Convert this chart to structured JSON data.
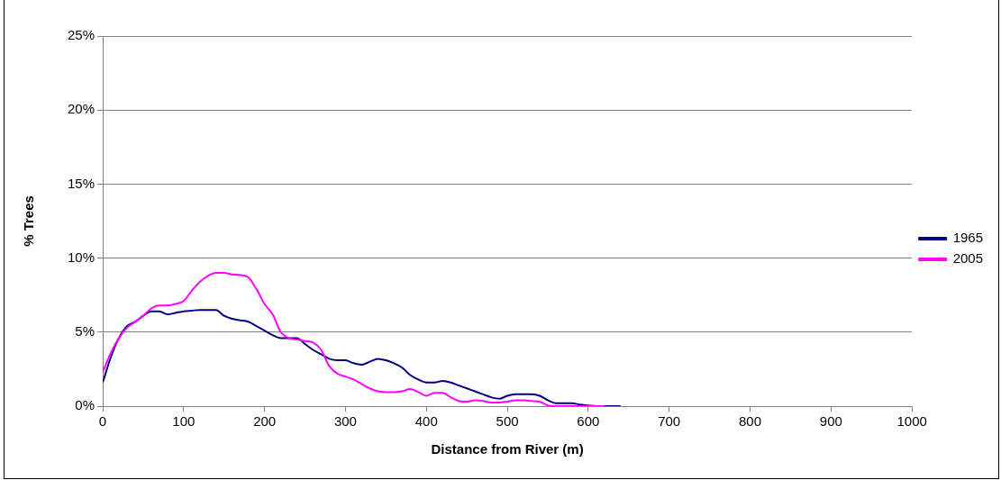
{
  "chart_data": {
    "type": "line",
    "xlabel": "Distance from River (m)",
    "ylabel": "% Trees",
    "x": [
      0,
      10,
      20,
      30,
      40,
      50,
      60,
      70,
      80,
      90,
      100,
      110,
      120,
      130,
      140,
      150,
      160,
      170,
      180,
      190,
      200,
      210,
      220,
      230,
      240,
      250,
      260,
      270,
      280,
      290,
      300,
      310,
      320,
      330,
      340,
      350,
      360,
      370,
      380,
      390,
      400,
      410,
      420,
      430,
      440,
      450,
      460,
      470,
      480,
      490,
      500,
      510,
      520,
      530,
      540,
      550,
      560,
      570,
      580,
      590,
      600,
      610,
      620,
      630,
      640
    ],
    "series": [
      {
        "name": "1965",
        "color": "#000080",
        "values": [
          1.6,
          3.3,
          4.6,
          5.4,
          5.7,
          6.1,
          6.4,
          6.4,
          6.2,
          6.3,
          6.4,
          6.45,
          6.5,
          6.5,
          6.5,
          6.1,
          5.9,
          5.8,
          5.7,
          5.4,
          5.1,
          4.8,
          4.6,
          4.6,
          4.6,
          4.2,
          3.8,
          3.5,
          3.2,
          3.1,
          3.1,
          2.9,
          2.8,
          3.0,
          3.2,
          3.1,
          2.9,
          2.6,
          2.1,
          1.8,
          1.6,
          1.6,
          1.7,
          1.6,
          1.4,
          1.2,
          1.0,
          0.8,
          0.6,
          0.5,
          0.7,
          0.8,
          0.8,
          0.8,
          0.7,
          0.4,
          0.2,
          0.2,
          0.2,
          0.1,
          0.05,
          0,
          0,
          0,
          0
        ]
      },
      {
        "name": "2005",
        "color": "#ff00ff",
        "values": [
          2.3,
          3.6,
          4.6,
          5.3,
          5.7,
          6.1,
          6.6,
          6.8,
          6.8,
          6.9,
          7.1,
          7.8,
          8.4,
          8.8,
          9.0,
          9.0,
          8.9,
          8.85,
          8.7,
          7.9,
          6.9,
          6.2,
          5.0,
          4.6,
          4.5,
          4.4,
          4.3,
          3.8,
          2.7,
          2.2,
          2.0,
          1.8,
          1.5,
          1.2,
          1.0,
          0.95,
          0.95,
          1.0,
          1.15,
          0.95,
          0.7,
          0.9,
          0.9,
          0.6,
          0.35,
          0.3,
          0.4,
          0.35,
          0.25,
          0.25,
          0.3,
          0.4,
          0.4,
          0.35,
          0.3,
          0.05,
          0,
          0,
          0,
          0,
          0,
          0,
          0,
          null,
          null
        ]
      }
    ],
    "xlim": [
      0,
      1000
    ],
    "xticks": [
      0,
      100,
      200,
      300,
      400,
      500,
      600,
      700,
      800,
      900,
      1000
    ],
    "ylim": [
      0,
      25
    ],
    "yticks": [
      {
        "value": 0,
        "label": "0%"
      },
      {
        "value": 5,
        "label": "5%"
      },
      {
        "value": 10,
        "label": "10%"
      },
      {
        "value": 15,
        "label": "15%"
      },
      {
        "value": 20,
        "label": "20%"
      },
      {
        "value": 25,
        "label": "25%"
      }
    ],
    "grid": "y",
    "legend": "right",
    "marker": "none",
    "line_style": "solid"
  }
}
